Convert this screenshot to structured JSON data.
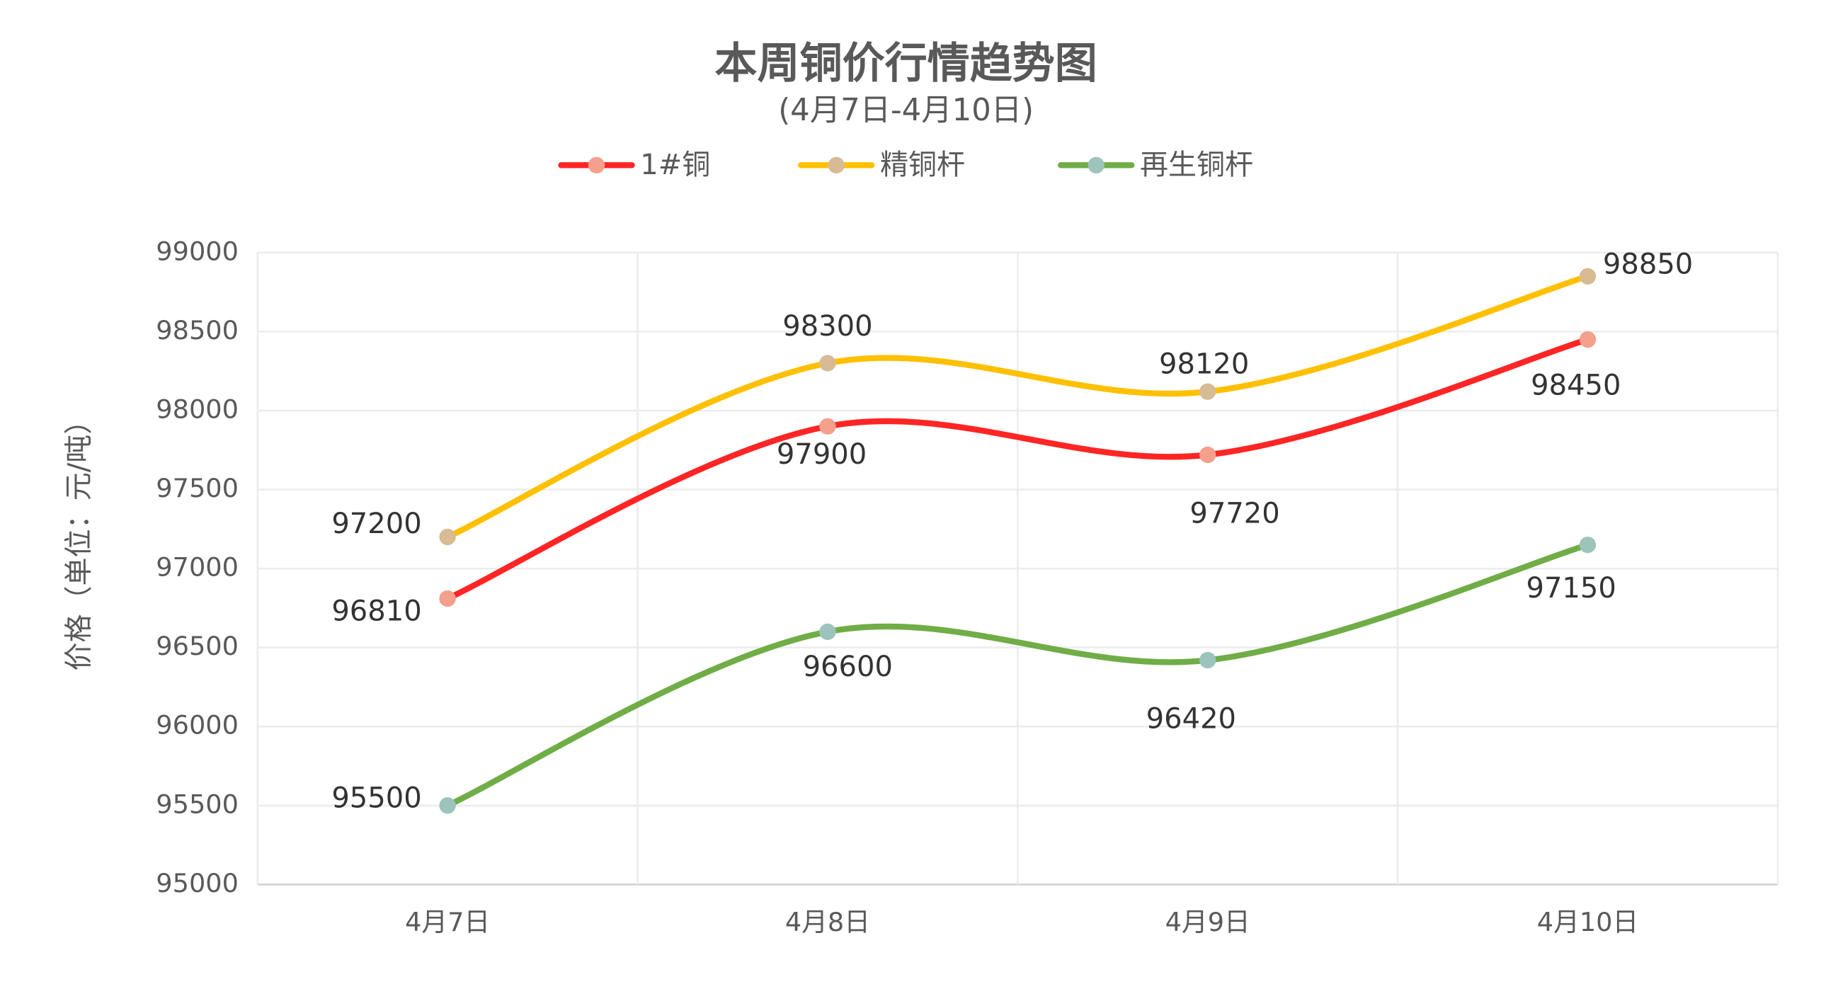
{
  "chart_data": {
    "type": "line",
    "title": "本周铜价行情趋势图",
    "subtitle": "(4月7日-4月10日)",
    "y_label": "价格（单位：元/吨）",
    "categories": [
      "4月7日",
      "4月8日",
      "4月9日",
      "4月10日"
    ],
    "series": [
      {
        "name": "1#铜",
        "color": "#ff2525",
        "marker_color": "#f4a08c",
        "values": [
          96810,
          97900,
          97720,
          98450
        ]
      },
      {
        "name": "精铜杆",
        "color": "#ffc000",
        "marker_color": "#d6bb94",
        "values": [
          97200,
          98300,
          98120,
          98850
        ]
      },
      {
        "name": "再生铜杆",
        "color": "#70ad47",
        "marker_color": "#9cc4bc",
        "values": [
          95500,
          96600,
          96420,
          97150
        ]
      }
    ],
    "ylim": [
      95000,
      99000
    ],
    "yticks": [
      95000,
      95500,
      96000,
      96500,
      97000,
      97500,
      98000,
      98500,
      99000
    ],
    "grid": true,
    "legend": "top",
    "smooth": true
  }
}
